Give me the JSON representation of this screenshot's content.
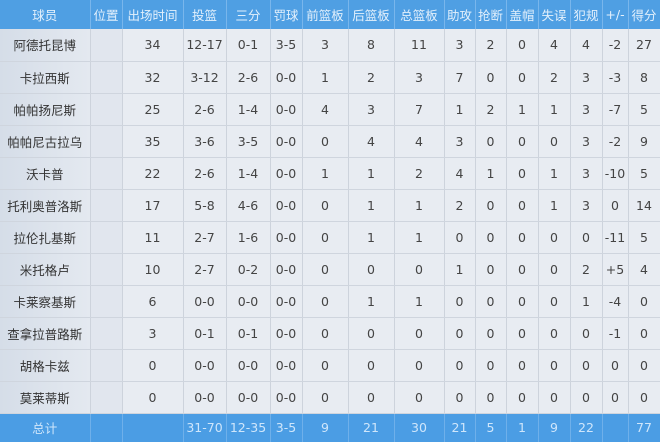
{
  "headers": [
    "球员",
    "位置",
    "出场时间",
    "投篮",
    "三分",
    "罚球",
    "前篮板",
    "后篮板",
    "总篮板",
    "助攻",
    "抢断",
    "盖帽",
    "失误",
    "犯规",
    "+/-",
    "得分"
  ],
  "rows": [
    [
      "阿德托昆博",
      "",
      "34",
      "12-17",
      "0-1",
      "3-5",
      "3",
      "8",
      "11",
      "3",
      "2",
      "0",
      "4",
      "4",
      "-2",
      "27"
    ],
    [
      "卡拉西斯",
      "",
      "32",
      "3-12",
      "2-6",
      "0-0",
      "1",
      "2",
      "3",
      "7",
      "0",
      "0",
      "2",
      "3",
      "-3",
      "8"
    ],
    [
      "帕帕扬尼斯",
      "",
      "25",
      "2-6",
      "1-4",
      "0-0",
      "4",
      "3",
      "7",
      "1",
      "2",
      "1",
      "1",
      "3",
      "-7",
      "5"
    ],
    [
      "帕帕尼古拉乌",
      "",
      "35",
      "3-6",
      "3-5",
      "0-0",
      "0",
      "4",
      "4",
      "3",
      "0",
      "0",
      "0",
      "3",
      "-2",
      "9"
    ],
    [
      "沃卡普",
      "",
      "22",
      "2-6",
      "1-4",
      "0-0",
      "1",
      "1",
      "2",
      "4",
      "1",
      "0",
      "1",
      "3",
      "-10",
      "5"
    ],
    [
      "托利奥普洛斯",
      "",
      "17",
      "5-8",
      "4-6",
      "0-0",
      "0",
      "1",
      "1",
      "2",
      "0",
      "0",
      "1",
      "3",
      "0",
      "14"
    ],
    [
      "拉伦扎基斯",
      "",
      "11",
      "2-7",
      "1-6",
      "0-0",
      "0",
      "1",
      "1",
      "0",
      "0",
      "0",
      "0",
      "0",
      "-11",
      "5"
    ],
    [
      "米托格卢",
      "",
      "10",
      "2-7",
      "0-2",
      "0-0",
      "0",
      "0",
      "0",
      "1",
      "0",
      "0",
      "0",
      "2",
      "+5",
      "4"
    ],
    [
      "卡莱察基斯",
      "",
      "6",
      "0-0",
      "0-0",
      "0-0",
      "0",
      "1",
      "1",
      "0",
      "0",
      "0",
      "0",
      "1",
      "-4",
      "0"
    ],
    [
      "查拿拉普路斯",
      "",
      "3",
      "0-1",
      "0-1",
      "0-0",
      "0",
      "0",
      "0",
      "0",
      "0",
      "0",
      "0",
      "0",
      "-1",
      "0"
    ],
    [
      "胡格卡兹",
      "",
      "0",
      "0-0",
      "0-0",
      "0-0",
      "0",
      "0",
      "0",
      "0",
      "0",
      "0",
      "0",
      "0",
      "0",
      "0"
    ],
    [
      "莫莱蒂斯",
      "",
      "0",
      "0-0",
      "0-0",
      "0-0",
      "0",
      "0",
      "0",
      "0",
      "0",
      "0",
      "0",
      "0",
      "0",
      "0"
    ]
  ],
  "totals": [
    "总计",
    "",
    "",
    "31-70",
    "12-35",
    "3-5",
    "9",
    "21",
    "30",
    "21",
    "5",
    "1",
    "9",
    "22",
    "",
    "77"
  ]
}
